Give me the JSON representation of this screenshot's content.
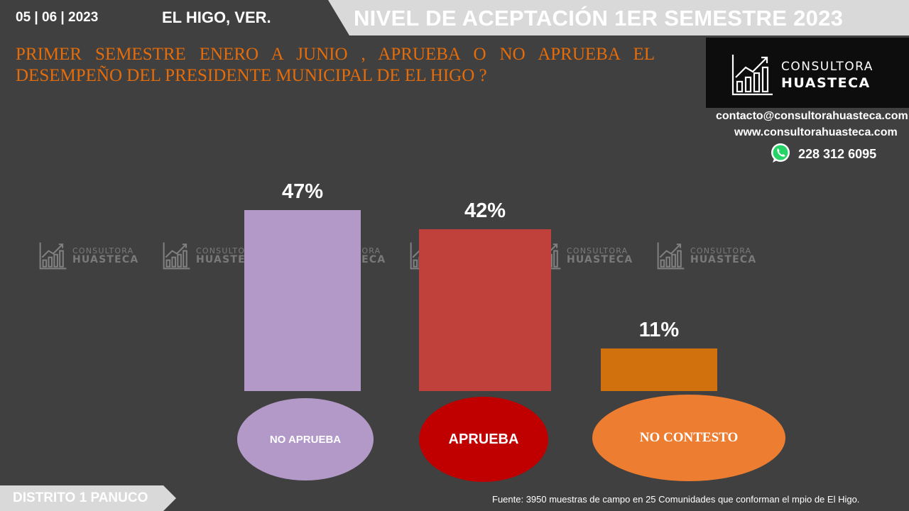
{
  "header": {
    "date": "05 | 06 | 2023",
    "location": "EL HIGO, VER.",
    "banner_title": "NIVEL DE ACEPTACIÓN  1ER SEMESTRE 2023"
  },
  "question": "PRIMER SEMESTRE ENERO A JUNIO , APRUEBA O NO APRUEBA EL DESEMPEÑO DEL PRESIDENTE MUNICIPAL DE  EL HIGO ?",
  "brand": {
    "line1": "CONSULTORA",
    "line2": "HUASTECA",
    "email": "contacto@consultorahuasteca.com",
    "website": "www.consultorahuasteca.com",
    "phone": "228 312 6095",
    "phone_icon": "whatsapp-icon"
  },
  "chart_data": {
    "type": "bar",
    "categories": [
      "NO APRUEBA",
      "APRUEBA",
      "NO CONTESTO"
    ],
    "values": [
      47,
      42,
      11
    ],
    "data_labels": [
      "47%",
      "42%",
      "11%"
    ],
    "unit": "%",
    "colors": [
      "#b399c8",
      "#c0403c",
      "#d1710d"
    ],
    "ellipse_colors": [
      "#b399c8",
      "#c00000",
      "#ed7d31"
    ],
    "ylim": [
      0,
      47
    ],
    "grid": false,
    "legend": "none"
  },
  "footer": {
    "district": "DISTRITO 1 PANUCO",
    "source": "Fuente: 3950 muestras de campo en  25 Comunidades que conforman el mpio de  El Higo."
  }
}
